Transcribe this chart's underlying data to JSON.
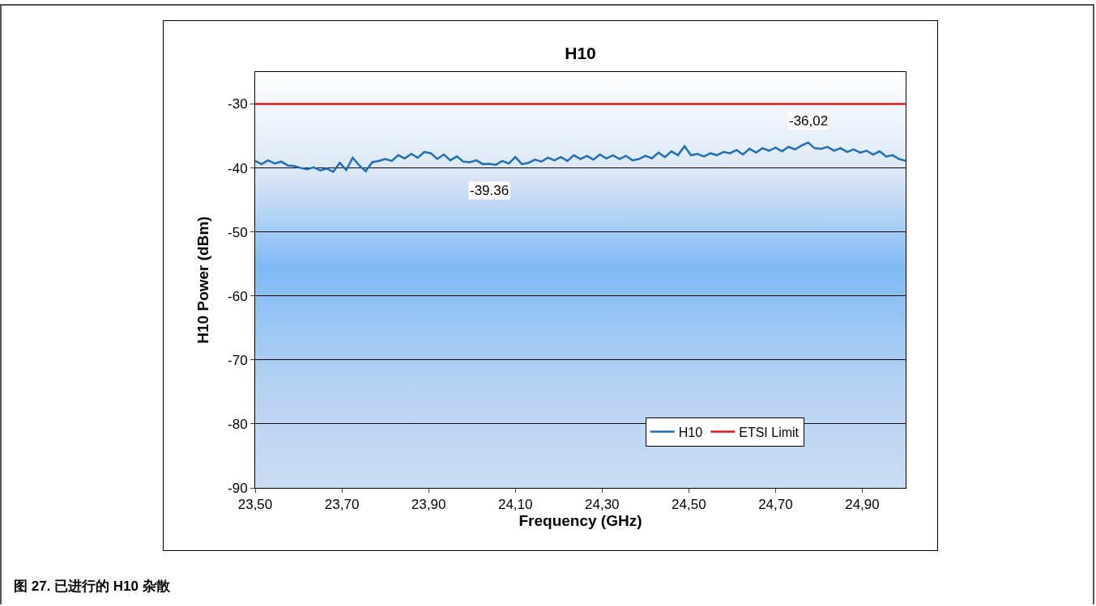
{
  "chart_data": {
    "type": "line",
    "title": "H10",
    "xlabel": "Frequency (GHz)",
    "ylabel": "H10 Power (dBm)",
    "xlim": [
      23.5,
      25.0
    ],
    "xticks": [
      {
        "value": 23.5,
        "label": "23,50"
      },
      {
        "value": 23.7,
        "label": "23,70"
      },
      {
        "value": 23.9,
        "label": "23,90"
      },
      {
        "value": 24.1,
        "label": "24,10"
      },
      {
        "value": 24.3,
        "label": "24,30"
      },
      {
        "value": 24.5,
        "label": "24,50"
      },
      {
        "value": 24.7,
        "label": "24,70"
      },
      {
        "value": 24.9,
        "label": "24,90"
      }
    ],
    "ylim": [
      -90,
      -25
    ],
    "yticks": [
      -90,
      -80,
      -70,
      -60,
      -50,
      -40,
      -30
    ],
    "grid": "y",
    "legend": "bottom right",
    "marker": "none",
    "line_style": "solid",
    "series": [
      {
        "name": "H10",
        "color": "#1f6fb8",
        "x": [
          23.5,
          23.515,
          23.53,
          23.545,
          23.56,
          23.575,
          23.59,
          23.605,
          23.62,
          23.635,
          23.65,
          23.665,
          23.68,
          23.695,
          23.71,
          23.725,
          23.74,
          23.755,
          23.77,
          23.785,
          23.8,
          23.815,
          23.83,
          23.845,
          23.86,
          23.875,
          23.89,
          23.905,
          23.92,
          23.935,
          23.95,
          23.965,
          23.98,
          23.995,
          24.01,
          24.025,
          24.04,
          24.055,
          24.07,
          24.085,
          24.1,
          24.115,
          24.13,
          24.145,
          24.16,
          24.175,
          24.19,
          24.205,
          24.22,
          24.235,
          24.25,
          24.265,
          24.28,
          24.295,
          24.31,
          24.325,
          24.34,
          24.355,
          24.37,
          24.385,
          24.4,
          24.415,
          24.43,
          24.445,
          24.46,
          24.475,
          24.49,
          24.505,
          24.52,
          24.535,
          24.55,
          24.565,
          24.58,
          24.595,
          24.61,
          24.625,
          24.64,
          24.655,
          24.67,
          24.685,
          24.7,
          24.715,
          24.73,
          24.745,
          24.76,
          24.775,
          24.79,
          24.805,
          24.82,
          24.835,
          24.85,
          24.865,
          24.88,
          24.895,
          24.91,
          24.925,
          24.94,
          24.955,
          24.97,
          24.985,
          25.0
        ],
        "values": [
          -38.9,
          -39.4,
          -38.8,
          -39.3,
          -39.0,
          -39.6,
          -39.7,
          -40.0,
          -40.2,
          -39.9,
          -40.4,
          -40.1,
          -40.6,
          -39.2,
          -40.3,
          -38.4,
          -39.6,
          -40.5,
          -39.1,
          -38.9,
          -38.6,
          -38.9,
          -38.0,
          -38.5,
          -37.8,
          -38.4,
          -37.5,
          -37.7,
          -38.6,
          -37.9,
          -38.8,
          -38.2,
          -39.0,
          -39.1,
          -38.8,
          -39.4,
          -39.36,
          -39.5,
          -38.9,
          -39.3,
          -38.3,
          -39.4,
          -39.2,
          -38.7,
          -39.0,
          -38.4,
          -38.8,
          -38.3,
          -38.9,
          -38.0,
          -38.6,
          -38.1,
          -38.7,
          -37.9,
          -38.5,
          -38.0,
          -38.6,
          -38.1,
          -38.8,
          -38.6,
          -38.1,
          -38.5,
          -37.6,
          -38.3,
          -37.4,
          -38.0,
          -36.6,
          -38.0,
          -37.8,
          -38.2,
          -37.7,
          -38.0,
          -37.5,
          -37.7,
          -37.2,
          -37.9,
          -37.0,
          -37.6,
          -36.9,
          -37.3,
          -36.8,
          -37.4,
          -36.7,
          -37.1,
          -36.5,
          -36.02,
          -36.9,
          -37.0,
          -36.7,
          -37.3,
          -36.9,
          -37.5,
          -37.1,
          -37.6,
          -37.3,
          -37.9,
          -37.4,
          -38.2,
          -38.0,
          -38.6,
          -38.9
        ]
      },
      {
        "name": "ETSI Limit",
        "color": "#e31a1c",
        "x": [
          23.5,
          25.0
        ],
        "values": [
          -30,
          -30
        ]
      }
    ],
    "annotations": [
      {
        "text": "-39.36",
        "x": 24.04,
        "y": -39.36
      },
      {
        "text": "-36,02",
        "x": 24.775,
        "y": -36.02
      },
      "图 27. 已进行的 H10 杂散"
    ]
  }
}
